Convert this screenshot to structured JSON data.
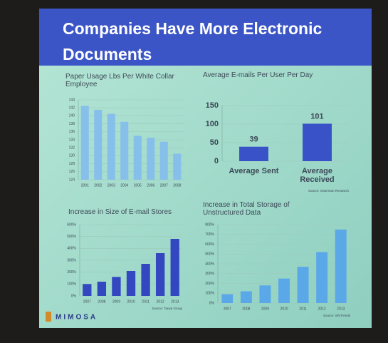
{
  "slide_title": "Companies Have More Electronic Documents",
  "logo": "MIMOSA",
  "chart_data": [
    {
      "type": "bar",
      "title": "Paper Usage Lbs Per White Collar Employee",
      "categories": [
        "2001",
        "2002",
        "2003",
        "2004",
        "2005",
        "2006",
        "2007",
        "2008"
      ],
      "values": [
        142.5,
        141.5,
        140.5,
        138.5,
        135,
        134.5,
        133.5,
        130.5
      ],
      "color": "#86c0ea",
      "ylim": [
        124,
        144
      ],
      "yticks": [
        124,
        126,
        128,
        130,
        132,
        134,
        136,
        138,
        140,
        142,
        144
      ],
      "grid": true
    },
    {
      "type": "bar",
      "title": "Average E-mails Per User Per Day",
      "categories": [
        "Average Sent",
        "Average Received"
      ],
      "values": [
        39,
        101
      ],
      "color": "#3a52c8",
      "ylim": [
        0,
        150
      ],
      "yticks": [
        0,
        50,
        100,
        150
      ],
      "grid": true,
      "source": "Source: Osterman Research"
    },
    {
      "type": "bar",
      "title": "Increase in Size of E-mail Stores",
      "categories": [
        "2007",
        "2008",
        "2009",
        "2010",
        "2011",
        "2012",
        "2013"
      ],
      "values": [
        100,
        120,
        160,
        210,
        270,
        360,
        480
      ],
      "color": "#3348c0",
      "ylim": [
        0,
        600
      ],
      "yticks": [
        {
          "value": 0,
          "label": "0%"
        },
        {
          "value": 100,
          "label": "100%"
        },
        {
          "value": 200,
          "label": "200%"
        },
        {
          "value": 300,
          "label": "300%"
        },
        {
          "value": 400,
          "label": "400%"
        },
        {
          "value": 500,
          "label": "500%"
        },
        {
          "value": 600,
          "label": "600%"
        }
      ],
      "grid": true,
      "source": "Source: Tanya Group"
    },
    {
      "type": "bar",
      "title": "Increase in Total Storage of Unstructured Data",
      "categories": [
        "2007",
        "2008",
        "2009",
        "2010",
        "2011",
        "2012",
        "2013"
      ],
      "values": [
        90,
        120,
        180,
        250,
        370,
        520,
        750
      ],
      "color": "#5aa8e8",
      "ylim": [
        0,
        800
      ],
      "yticks": [
        {
          "value": 0,
          "label": "0%"
        },
        {
          "value": 100,
          "label": "100%"
        },
        {
          "value": 200,
          "label": "200%"
        },
        {
          "value": 300,
          "label": "300%"
        },
        {
          "value": 400,
          "label": "400%"
        },
        {
          "value": 500,
          "label": "500%"
        },
        {
          "value": 600,
          "label": "600%"
        },
        {
          "value": 700,
          "label": "700%"
        },
        {
          "value": 800,
          "label": "800%"
        }
      ],
      "grid": true,
      "source": "Source: InfoTrends"
    }
  ]
}
